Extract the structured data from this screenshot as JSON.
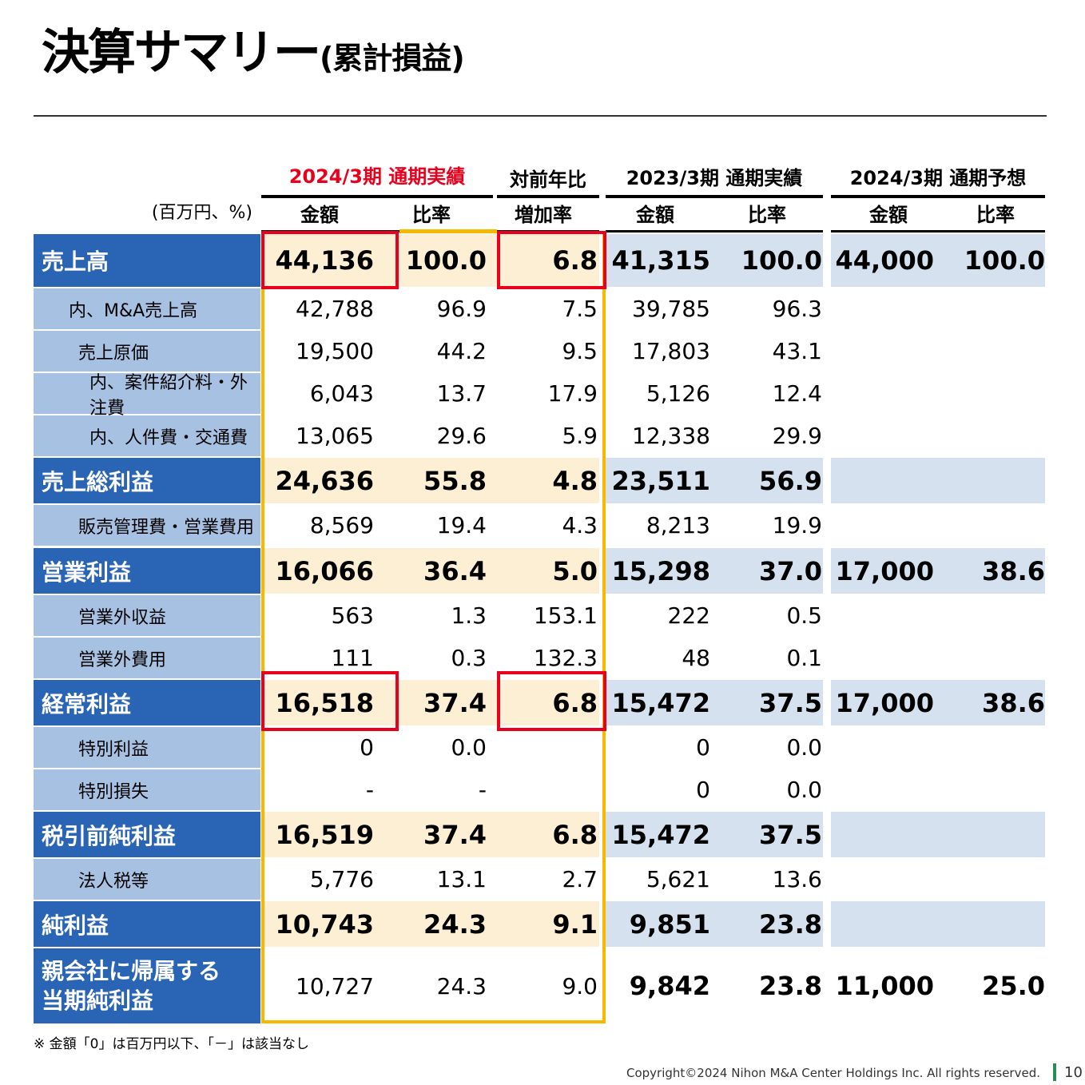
{
  "title": {
    "main": "決算サマリー",
    "sub": "(累計損益)"
  },
  "unit_label": "(百万円、%)",
  "groups": {
    "current": "2024/3期 通期実績",
    "yoy": "対前年比",
    "prev": "2023/3期 通期実績",
    "forecast": "2024/3期 通期予想"
  },
  "subheaders": {
    "cur_amount": "金額",
    "cur_ratio": "比率",
    "yoy_rate": "増加率",
    "prev_amount": "金額",
    "prev_ratio": "比率",
    "fc_amount": "金額",
    "fc_ratio": "比率"
  },
  "rows": [
    {
      "label": "売上高",
      "cur": "44,136",
      "cur_r": "100.0",
      "yoy": "6.8",
      "prev": "41,315",
      "prev_r": "100.0",
      "fc": "44,000",
      "fc_r": "100.0"
    },
    {
      "label": "内、M&A売上高",
      "cur": "42,788",
      "cur_r": "96.9",
      "yoy": "7.5",
      "prev": "39,785",
      "prev_r": "96.3",
      "fc": "",
      "fc_r": ""
    },
    {
      "label": "売上原価",
      "cur": "19,500",
      "cur_r": "44.2",
      "yoy": "9.5",
      "prev": "17,803",
      "prev_r": "43.1",
      "fc": "",
      "fc_r": ""
    },
    {
      "label": "内、案件紹介料・外注費",
      "cur": "6,043",
      "cur_r": "13.7",
      "yoy": "17.9",
      "prev": "5,126",
      "prev_r": "12.4",
      "fc": "",
      "fc_r": ""
    },
    {
      "label": "内、人件費・交通費",
      "cur": "13,065",
      "cur_r": "29.6",
      "yoy": "5.9",
      "prev": "12,338",
      "prev_r": "29.9",
      "fc": "",
      "fc_r": ""
    },
    {
      "label": "売上総利益",
      "cur": "24,636",
      "cur_r": "55.8",
      "yoy": "4.8",
      "prev": "23,511",
      "prev_r": "56.9",
      "fc": "",
      "fc_r": ""
    },
    {
      "label": "販売管理費・営業費用",
      "cur": "8,569",
      "cur_r": "19.4",
      "yoy": "4.3",
      "prev": "8,213",
      "prev_r": "19.9",
      "fc": "",
      "fc_r": ""
    },
    {
      "label": "営業利益",
      "cur": "16,066",
      "cur_r": "36.4",
      "yoy": "5.0",
      "prev": "15,298",
      "prev_r": "37.0",
      "fc": "17,000",
      "fc_r": "38.6"
    },
    {
      "label": "営業外収益",
      "cur": "563",
      "cur_r": "1.3",
      "yoy": "153.1",
      "prev": "222",
      "prev_r": "0.5",
      "fc": "",
      "fc_r": ""
    },
    {
      "label": "営業外費用",
      "cur": "111",
      "cur_r": "0.3",
      "yoy": "132.3",
      "prev": "48",
      "prev_r": "0.1",
      "fc": "",
      "fc_r": ""
    },
    {
      "label": "経常利益",
      "cur": "16,518",
      "cur_r": "37.4",
      "yoy": "6.8",
      "prev": "15,472",
      "prev_r": "37.5",
      "fc": "17,000",
      "fc_r": "38.6"
    },
    {
      "label": "特別利益",
      "cur": "0",
      "cur_r": "0.0",
      "yoy": "",
      "prev": "0",
      "prev_r": "0.0",
      "fc": "",
      "fc_r": ""
    },
    {
      "label": "特別損失",
      "cur": "-",
      "cur_r": "-",
      "yoy": "",
      "prev": "0",
      "prev_r": "0.0",
      "fc": "",
      "fc_r": ""
    },
    {
      "label": "税引前純利益",
      "cur": "16,519",
      "cur_r": "37.4",
      "yoy": "6.8",
      "prev": "15,472",
      "prev_r": "37.5",
      "fc": "",
      "fc_r": ""
    },
    {
      "label": "法人税等",
      "cur": "5,776",
      "cur_r": "13.1",
      "yoy": "2.7",
      "prev": "5,621",
      "prev_r": "13.6",
      "fc": "",
      "fc_r": ""
    },
    {
      "label": "純利益",
      "cur": "10,743",
      "cur_r": "24.3",
      "yoy": "9.1",
      "prev": "9,851",
      "prev_r": "23.8",
      "fc": "",
      "fc_r": ""
    },
    {
      "label": "親会社に帰属する\n当期純利益",
      "cur": "10,727",
      "cur_r": "24.3",
      "yoy": "9.0",
      "prev": "9,842",
      "prev_r": "23.8",
      "fc": "11,000",
      "fc_r": "25.0"
    }
  ],
  "footnote": "※ 金額「0」は百万円以下、「－」は該当なし",
  "copyright": "Copyright©2024 Nihon M&A Center Holdings Inc. All rights reserved.",
  "page_number": "10",
  "colors": {
    "header_blue": "#2a64b4",
    "sub_blue": "#a7c1e3",
    "cream": "#fdefd3",
    "light_blue": "#d6e1ef",
    "gold": "#f8b800",
    "red": "#e8001c"
  }
}
